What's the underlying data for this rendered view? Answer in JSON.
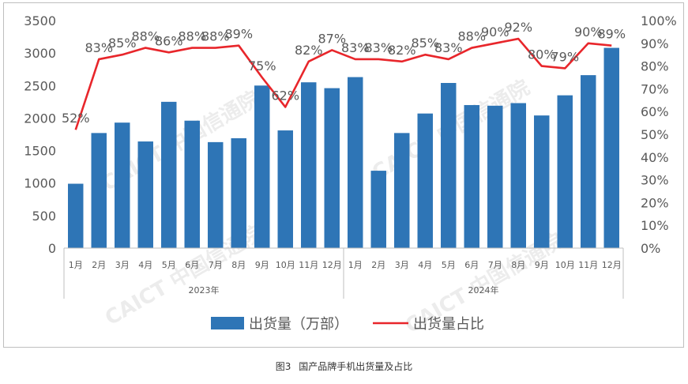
{
  "chart_data": {
    "type": "bar",
    "categories": [
      "1月",
      "2月",
      "3月",
      "4月",
      "5月",
      "6月",
      "7月",
      "8月",
      "9月",
      "10月",
      "11月",
      "12月",
      "1月",
      "2月",
      "3月",
      "4月",
      "5月",
      "6月",
      "7月",
      "8月",
      "9月",
      "10月",
      "11月",
      "12月"
    ],
    "groups": [
      {
        "label": "2023年",
        "start": 0,
        "end": 11
      },
      {
        "label": "2024年",
        "start": 12,
        "end": 23
      }
    ],
    "series": [
      {
        "name": "出货量（万部）",
        "type": "bar",
        "axis": "left",
        "color": "#2E75B6",
        "values": [
          990,
          1770,
          1930,
          1640,
          2250,
          1960,
          1630,
          1690,
          2500,
          1810,
          2550,
          2460,
          2630,
          1190,
          1770,
          2070,
          2540,
          2200,
          2190,
          2230,
          2040,
          2350,
          2660,
          3080
        ]
      },
      {
        "name": "出货量占比",
        "type": "line",
        "axis": "right",
        "color": "#E8262B",
        "values": [
          52,
          83,
          85,
          88,
          86,
          88,
          88,
          89,
          75,
          62,
          82,
          87,
          83,
          83,
          82,
          85,
          83,
          88,
          90,
          92,
          80,
          79,
          90,
          89
        ],
        "labels": [
          "52%",
          "83%",
          "85%",
          "88%",
          "86%",
          "88%",
          "88%",
          "89%",
          "75%",
          "62%",
          "82%",
          "87%",
          "83%",
          "83%",
          "82%",
          "85%",
          "83%",
          "88%",
          "90%",
          "92%",
          "80%",
          "79%",
          "90%",
          "89%"
        ]
      }
    ],
    "y_left": {
      "min": 0,
      "max": 3500,
      "step": 500,
      "ticks": [
        "0",
        "500",
        "1000",
        "1500",
        "2000",
        "2500",
        "3000",
        "3500"
      ]
    },
    "y_right": {
      "min": 0,
      "max": 100,
      "step": 10,
      "ticks": [
        "0%",
        "10%",
        "20%",
        "30%",
        "40%",
        "50%",
        "60%",
        "70%",
        "80%",
        "90%",
        "100%"
      ]
    },
    "grid": false,
    "legend": {
      "position": "bottom",
      "items": [
        {
          "label": "出货量（万部）",
          "kind": "bar"
        },
        {
          "label": "出货量占比",
          "kind": "line"
        }
      ]
    },
    "watermark": "CAICT 中国信通院"
  },
  "caption": {
    "figure": "图3",
    "text": "国产品牌手机出货量及占比"
  }
}
